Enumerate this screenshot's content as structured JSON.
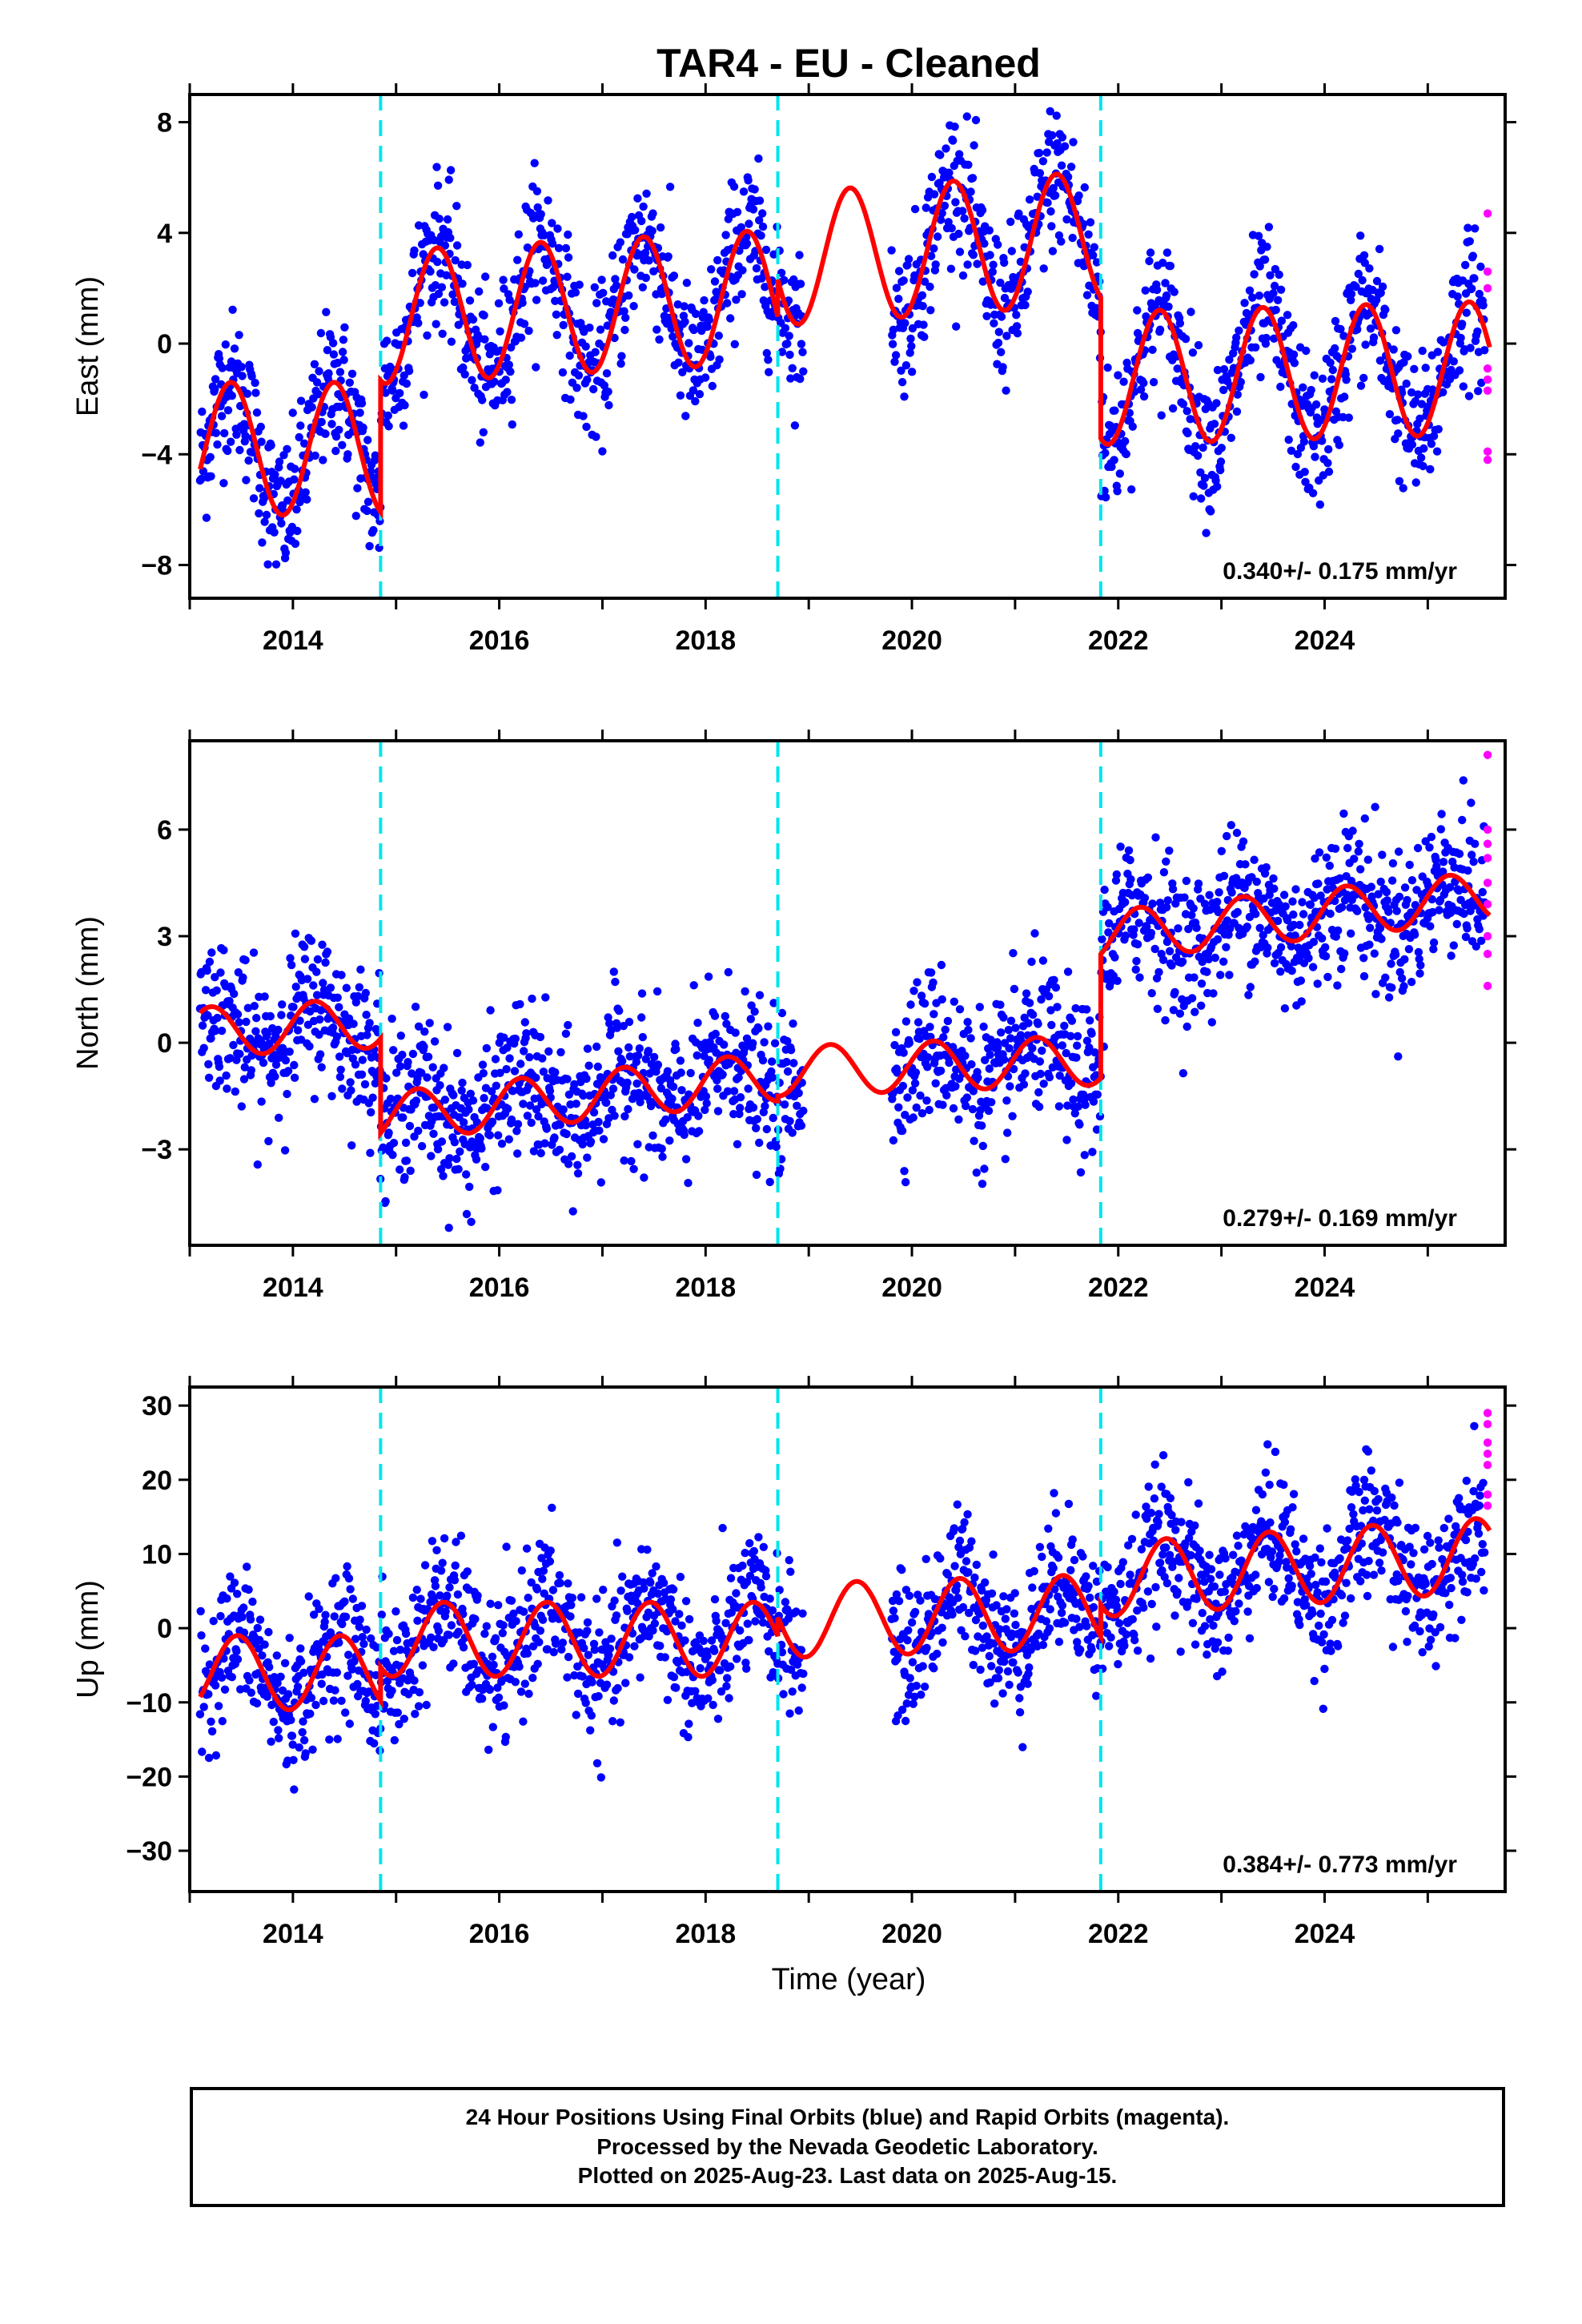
{
  "title": "TAR4  - EU - Cleaned",
  "xlabel": "Time (year)",
  "colors": {
    "final": "#0000ff",
    "rapid": "#ff00ff",
    "model": "#ff0000",
    "steps": "#00e5ee"
  },
  "caption": {
    "line1": "24 Hour Positions Using Final Orbits (blue) and Rapid Orbits (magenta).",
    "line2": "Processed by the Nevada Geodetic Laboratory.",
    "line3": "Plotted on 2025-Aug-23. Last data on 2025-Aug-15."
  },
  "chart_data": [
    {
      "type": "scatter",
      "ylabel": "East (mm)",
      "rate_label": "0.340+/- 0.175 mm/yr",
      "xlim": [
        2013.0,
        2025.75
      ],
      "ylim": [
        -9.2,
        9.0
      ],
      "yticks": [
        -8,
        -4,
        0,
        4,
        8
      ],
      "xticks": [
        2014,
        2016,
        2018,
        2020,
        2022,
        2024
      ],
      "steps": [
        2014.85,
        2018.7,
        2021.83
      ],
      "model": {
        "amp": 2.4,
        "phase": 0.0,
        "segments": [
          {
            "x0": 2013.1,
            "x1": 2014.85,
            "offset": -3.8,
            "rate": 0.0
          },
          {
            "x0": 2014.85,
            "x1": 2018.7,
            "offset": 0.95,
            "rate": 0.2
          },
          {
            "x0": 2018.7,
            "x1": 2021.83,
            "offset": 3.05,
            "rate": 0.25
          },
          {
            "x0": 2021.83,
            "x1": 2025.6,
            "offset": -1.25,
            "rate": 0.1
          }
        ]
      },
      "scatter_sigma": 1.3,
      "gaps": [
        [
          2018.95,
          2019.8
        ]
      ],
      "rapid_points": [
        [
          2025.58,
          4.7
        ],
        [
          2025.58,
          2.6
        ],
        [
          2025.58,
          2.0
        ],
        [
          2025.58,
          -0.9
        ],
        [
          2025.58,
          -1.3
        ],
        [
          2025.58,
          -1.7
        ],
        [
          2025.58,
          -3.9
        ],
        [
          2025.58,
          -4.2
        ]
      ]
    },
    {
      "type": "scatter",
      "ylabel": "North (mm)",
      "rate_label": "0.279+/- 0.169 mm/yr",
      "xlim": [
        2013.0,
        2025.75
      ],
      "ylim": [
        -5.7,
        8.5
      ],
      "yticks": [
        -3,
        0,
        3,
        6
      ],
      "xticks": [
        2014,
        2016,
        2018,
        2020,
        2022,
        2024
      ],
      "steps": [
        2014.85,
        2018.7,
        2021.83
      ],
      "model": {
        "amp": 0.7,
        "phase": 1.2,
        "segments": [
          {
            "x0": 2013.1,
            "x1": 2014.85,
            "offset": 0.3,
            "rate": 0.15
          },
          {
            "x0": 2014.85,
            "x1": 2018.7,
            "offset": -2.1,
            "rate": 0.3
          },
          {
            "x0": 2018.7,
            "x1": 2021.83,
            "offset": -0.8,
            "rate": 0.1
          },
          {
            "x0": 2021.83,
            "x1": 2025.6,
            "offset": 3.0,
            "rate": 0.3
          }
        ]
      },
      "scatter_sigma": 1.05,
      "gaps": [
        [
          2018.95,
          2019.8
        ]
      ],
      "rapid_points": [
        [
          2025.58,
          8.1
        ],
        [
          2025.58,
          6.0
        ],
        [
          2025.58,
          5.6
        ],
        [
          2025.58,
          5.2
        ],
        [
          2025.58,
          4.5
        ],
        [
          2025.58,
          3.9
        ],
        [
          2025.58,
          3.0
        ],
        [
          2025.58,
          2.5
        ],
        [
          2025.58,
          1.6
        ]
      ]
    },
    {
      "type": "scatter",
      "ylabel": "Up (mm)",
      "rate_label": "0.384+/- 0.773 mm/yr",
      "xlim": [
        2013.0,
        2025.75
      ],
      "ylim": [
        -35.5,
        32.5
      ],
      "yticks": [
        -30,
        -20,
        -10,
        0,
        10,
        20,
        30
      ],
      "xticks": [
        2014,
        2016,
        2018,
        2020,
        2022,
        2024
      ],
      "steps": [
        2014.85,
        2018.7,
        2021.83
      ],
      "model": {
        "amp": 5.0,
        "phase": -0.4,
        "segments": [
          {
            "x0": 2013.1,
            "x1": 2014.85,
            "offset": -6.0,
            "rate": 0.0
          },
          {
            "x0": 2014.85,
            "x1": 2018.7,
            "offset": -1.5,
            "rate": 0.0
          },
          {
            "x0": 2018.7,
            "x1": 2021.83,
            "offset": 1.0,
            "rate": 0.4
          },
          {
            "x0": 2021.83,
            "x1": 2025.6,
            "offset": 6.5,
            "rate": 0.9
          }
        ]
      },
      "scatter_sigma": 4.6,
      "gaps": [
        [
          2018.95,
          2019.8
        ]
      ],
      "rapid_points": [
        [
          2025.58,
          29.0
        ],
        [
          2025.58,
          27.5
        ],
        [
          2025.58,
          25.0
        ],
        [
          2025.58,
          23.5
        ],
        [
          2025.58,
          22.0
        ],
        [
          2025.58,
          18.0
        ],
        [
          2025.58,
          16.5
        ]
      ]
    }
  ]
}
